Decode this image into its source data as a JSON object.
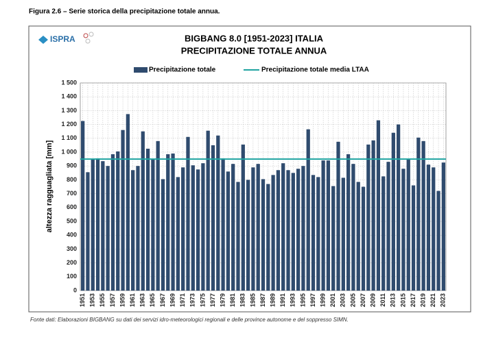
{
  "heading": "Figura 2.6 – Serie storica della precipitazione totale annua.",
  "logo": "ISPRA",
  "source": "Fonte dati: Elaborazioni BIGBANG su dati dei servizi idro-meteorologici regionali e delle province autonome e del soppresso SIMN.",
  "chart_data": {
    "type": "bar",
    "title": [
      "BIGBANG 8.0 [1951-2023] ITALIA",
      "PRECIPITAZIONE TOTALE ANNUA"
    ],
    "y_label": "altezza ragguagliata [mm]",
    "categories": [
      "1951",
      null,
      "1953",
      null,
      "1955",
      null,
      "1957",
      null,
      "1959",
      null,
      "1961",
      null,
      "1963",
      null,
      "1965",
      null,
      "1967",
      null,
      "1969",
      null,
      "1971",
      null,
      "1973",
      null,
      "1975",
      null,
      "1977",
      null,
      "1979",
      null,
      "1981",
      null,
      "1983",
      null,
      "1985",
      null,
      "1987",
      null,
      "1989",
      null,
      "1991",
      null,
      "1993",
      null,
      "1995",
      null,
      "1997",
      null,
      "1999",
      null,
      "2001",
      null,
      "2003",
      null,
      "2005",
      null,
      "2007",
      null,
      "2009",
      null,
      "2011",
      null,
      "2013",
      null,
      "2015",
      null,
      "2017",
      null,
      "2019",
      null,
      "2021",
      null,
      "2023"
    ],
    "series": [
      {
        "name": "Precipitazione totale",
        "color": "#2f4b6e",
        "values": [
          1225,
          855,
          950,
          955,
          935,
          900,
          985,
          1005,
          1160,
          1275,
          870,
          900,
          1150,
          1025,
          950,
          1080,
          805,
          985,
          990,
          820,
          890,
          1110,
          905,
          875,
          920,
          1155,
          1050,
          1120,
          955,
          860,
          915,
          785,
          1055,
          800,
          890,
          915,
          805,
          770,
          835,
          870,
          920,
          870,
          850,
          880,
          900,
          1165,
          835,
          820,
          940,
          940,
          755,
          1075,
          815,
          985,
          915,
          785,
          750,
          1055,
          1085,
          1230,
          825,
          930,
          1140,
          1200,
          880,
          950,
          760,
          1105,
          1080,
          910,
          890,
          720,
          925
        ]
      }
    ],
    "mean_line": {
      "name": "Precipitazione totale media LTAA",
      "color": "#1ea3a0",
      "value": 950
    },
    "ylim": [
      0,
      1500
    ],
    "yticks": [
      0,
      100,
      200,
      300,
      400,
      500,
      600,
      700,
      800,
      900,
      {
        "value": 1000,
        "label": "1 000"
      },
      {
        "value": 1100,
        "label": "1 100"
      },
      {
        "value": 1200,
        "label": "1 200"
      },
      {
        "value": 1300,
        "label": "1 300"
      },
      {
        "value": 1400,
        "label": "1 400"
      },
      {
        "value": 1500,
        "label": "1 500"
      }
    ],
    "grid": true
  }
}
